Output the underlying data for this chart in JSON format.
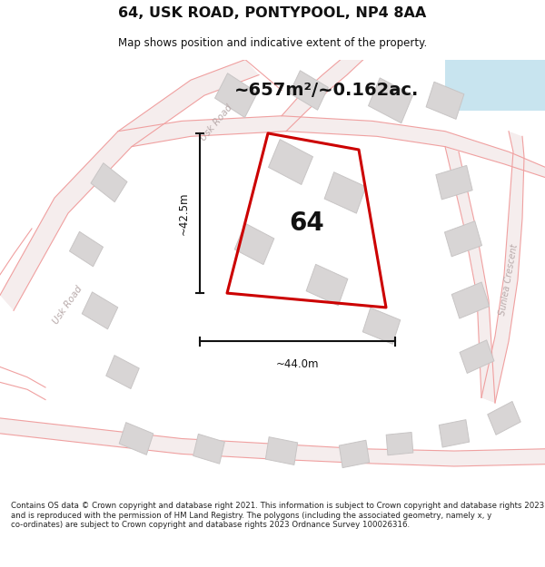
{
  "title": "64, USK ROAD, PONTYPOOL, NP4 8AA",
  "subtitle": "Map shows position and indicative extent of the property.",
  "area_text": "~657m²/~0.162ac.",
  "label_64": "64",
  "dim_vertical": "~42.5m",
  "dim_horizontal": "~44.0m",
  "road_label_usk_top": "Usk Road",
  "road_label_usk_bot": "Usk Road",
  "road_label_sunlea": "Sunlea Crescent",
  "copyright_text": "Contains OS data © Crown copyright and database right 2021. This information is subject to Crown copyright and database rights 2023 and is reproduced with the permission of HM Land Registry. The polygons (including the associated geometry, namely x, y co-ordinates) are subject to Crown copyright and database rights 2023 Ordnance Survey 100026316.",
  "bg_color": "#ffffff",
  "map_bg": "#f9f6f6",
  "road_color": "#f0a0a0",
  "road_fill": "#f9f0f0",
  "building_color": "#d8d5d5",
  "building_edge": "#c8c5c5",
  "property_color": "#cc0000",
  "dim_line_color": "#111111",
  "title_color": "#111111",
  "area_text_color": "#111111",
  "label_color": "#111111",
  "fig_width": 6.0,
  "fig_height": 6.25
}
